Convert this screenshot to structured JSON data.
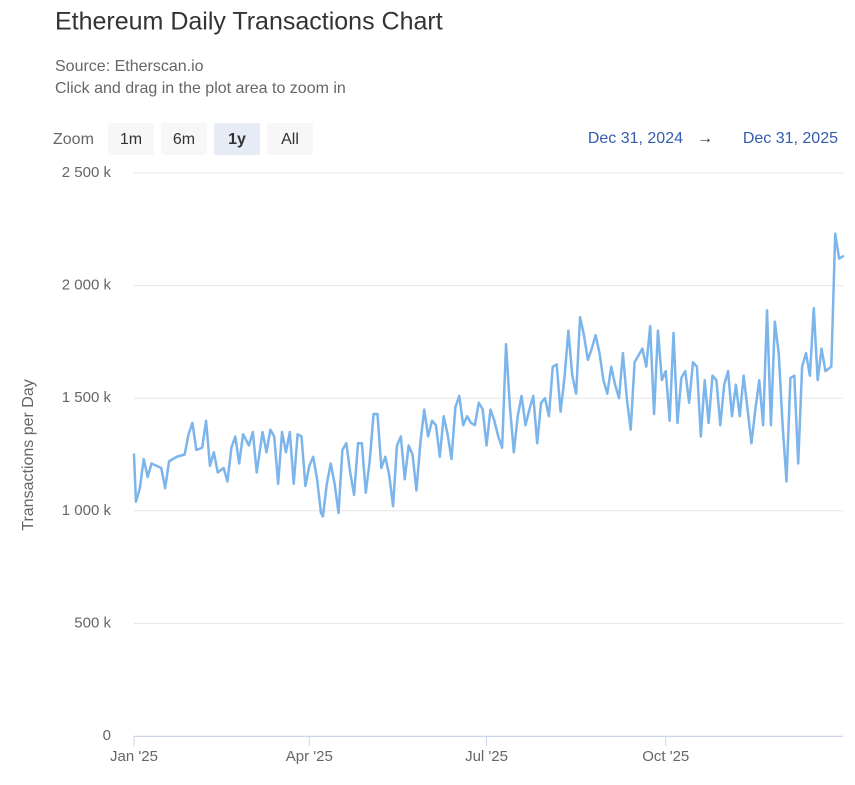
{
  "chart_data": {
    "type": "line",
    "title": "Ethereum Daily Transactions Chart",
    "subtitle": [
      "Source: Etherscan.io",
      "Click and drag in the plot area to zoom in"
    ],
    "y_label": "Transactions per Day",
    "color": "#7cb5ec",
    "grid": true,
    "xlim": [
      0,
      364
    ],
    "xticks": [
      {
        "value": 0,
        "label": "Jan '25"
      },
      {
        "value": 90,
        "label": "Apr '25"
      },
      {
        "value": 181,
        "label": "Jul '25"
      },
      {
        "value": 273,
        "label": "Oct '25"
      }
    ],
    "ylim": [
      0,
      2500000
    ],
    "yticks": [
      0,
      {
        "value": 500000,
        "label": "500 k"
      },
      {
        "value": 1000000,
        "label": "1 000 k"
      },
      {
        "value": 1500000,
        "label": "1 500 k"
      },
      {
        "value": 2000000,
        "label": "2 000 k"
      },
      {
        "value": 2500000,
        "label": "2 500 k"
      }
    ],
    "x": [
      0,
      1,
      3,
      5,
      7,
      9,
      14,
      16,
      18,
      22,
      26,
      28,
      30,
      32,
      35,
      37,
      39,
      41,
      43,
      46,
      48,
      50,
      52,
      54,
      56,
      59,
      61,
      63,
      66,
      68,
      70,
      72,
      74,
      76,
      78,
      80,
      82,
      84,
      86,
      88,
      90,
      92,
      94,
      96,
      97,
      99,
      101,
      103,
      105,
      107,
      109,
      111,
      113,
      115,
      117,
      119,
      121,
      123,
      125,
      127,
      129,
      131,
      133,
      135,
      137,
      139,
      141,
      143,
      145,
      147,
      149,
      151,
      153,
      155,
      157,
      159,
      161,
      163,
      165,
      167,
      169,
      171,
      173,
      175,
      177,
      179,
      181,
      183,
      185,
      187,
      189,
      191,
      193,
      195,
      197,
      199,
      201,
      203,
      205,
      207,
      209,
      211,
      213,
      215,
      217,
      219,
      221,
      223,
      225,
      227,
      229,
      231,
      233,
      235,
      237,
      239,
      241,
      243,
      245,
      247,
      249,
      251,
      253,
      255,
      257,
      259,
      261,
      263,
      265,
      267,
      269,
      271,
      273,
      275,
      277,
      279,
      281,
      283,
      285,
      287,
      289,
      291,
      293,
      295,
      297,
      299,
      301,
      303,
      305,
      307,
      309,
      311,
      313,
      315,
      317,
      319,
      321,
      323,
      325,
      327,
      329,
      331,
      333,
      335,
      337,
      339,
      341,
      343,
      345,
      347,
      349,
      351,
      353,
      355,
      358,
      360,
      362,
      364
    ],
    "values": [
      1250000,
      1040000,
      1100000,
      1230000,
      1150000,
      1210000,
      1190000,
      1100000,
      1220000,
      1240000,
      1250000,
      1340000,
      1390000,
      1270000,
      1280000,
      1400000,
      1200000,
      1260000,
      1170000,
      1190000,
      1130000,
      1280000,
      1330000,
      1210000,
      1340000,
      1290000,
      1350000,
      1170000,
      1350000,
      1260000,
      1360000,
      1330000,
      1120000,
      1350000,
      1260000,
      1350000,
      1120000,
      1340000,
      1330000,
      1110000,
      1200000,
      1240000,
      1140000,
      990000,
      975000,
      1120000,
      1210000,
      1120000,
      990000,
      1270000,
      1300000,
      1170000,
      1070000,
      1300000,
      1300000,
      1080000,
      1220000,
      1430000,
      1430000,
      1190000,
      1240000,
      1160000,
      1020000,
      1290000,
      1330000,
      1140000,
      1290000,
      1250000,
      1090000,
      1300000,
      1450000,
      1330000,
      1400000,
      1380000,
      1240000,
      1420000,
      1340000,
      1230000,
      1460000,
      1510000,
      1380000,
      1420000,
      1390000,
      1380000,
      1480000,
      1450000,
      1290000,
      1450000,
      1400000,
      1330000,
      1280000,
      1740000,
      1460000,
      1260000,
      1420000,
      1510000,
      1380000,
      1450000,
      1510000,
      1300000,
      1480000,
      1500000,
      1420000,
      1640000,
      1650000,
      1440000,
      1590000,
      1800000,
      1600000,
      1520000,
      1860000,
      1780000,
      1670000,
      1720000,
      1780000,
      1700000,
      1580000,
      1520000,
      1640000,
      1560000,
      1500000,
      1700000,
      1500000,
      1360000,
      1660000,
      1690000,
      1720000,
      1640000,
      1820000,
      1430000,
      1800000,
      1580000,
      1620000,
      1400000,
      1790000,
      1390000,
      1590000,
      1620000,
      1480000,
      1660000,
      1640000,
      1330000,
      1580000,
      1390000,
      1600000,
      1580000,
      1380000,
      1560000,
      1620000,
      1420000,
      1560000,
      1420000,
      1600000,
      1450000,
      1300000,
      1450000,
      1580000,
      1380000,
      1890000,
      1380000,
      1840000,
      1700000,
      1380000,
      1130000,
      1590000,
      1600000,
      1210000,
      1640000,
      1700000,
      1600000,
      1900000,
      1580000,
      1720000,
      1620000,
      1640000,
      2230000,
      2120000,
      2130000
    ]
  },
  "range_selector": {
    "zoom_label": "Zoom",
    "buttons": [
      "1m",
      "6m",
      "1y",
      "All"
    ],
    "selected": 2,
    "from": "Dec 31, 2024",
    "arrow": "→",
    "to": "Dec 31, 2025"
  }
}
